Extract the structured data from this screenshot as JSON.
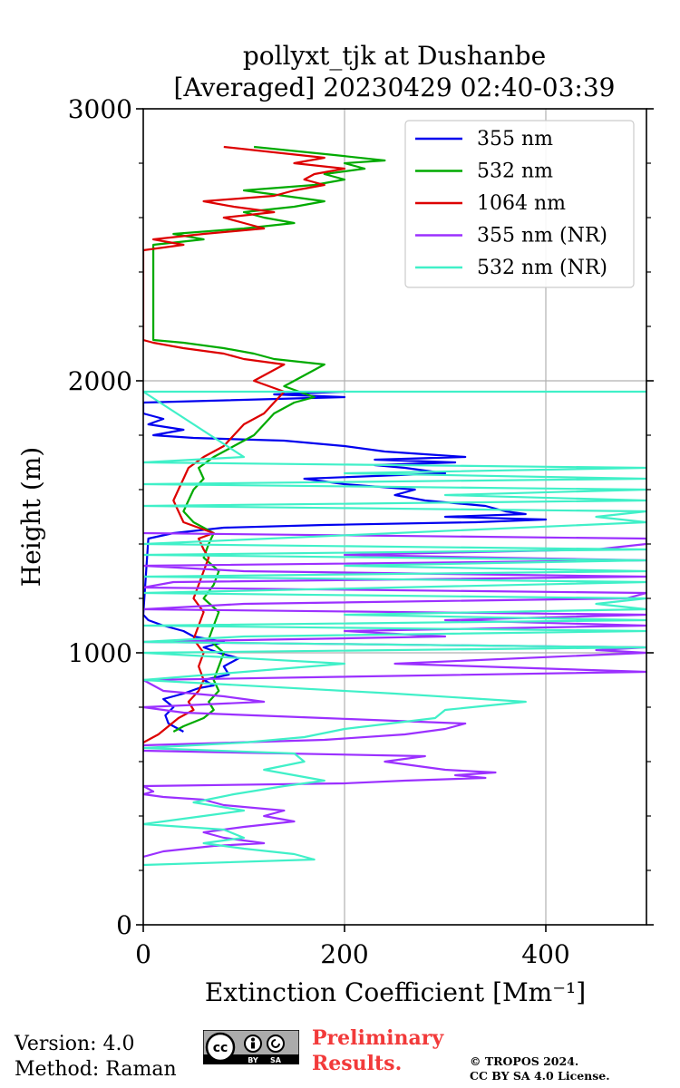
{
  "chart_data": {
    "type": "line",
    "title": "pollyxt_tjk at Dushanbe",
    "subtitle": "[Averaged] 20230429 02:40-03:39",
    "xlabel": "Extinction Coefficient [Mm⁻¹]",
    "ylabel": "Height (m)",
    "xlim": [
      0,
      500
    ],
    "ylim": [
      0,
      3000
    ],
    "x_ticks": [
      0,
      200,
      400
    ],
    "y_ticks": [
      0,
      1000,
      2000,
      3000
    ],
    "grid": true,
    "legend_position": "top-right",
    "series": [
      {
        "name": "355 nm",
        "color": "#0000ee",
        "points": [
          [
            40,
            710
          ],
          [
            25,
            740
          ],
          [
            22,
            770
          ],
          [
            30,
            800
          ],
          [
            20,
            830
          ],
          [
            40,
            850
          ],
          [
            55,
            870
          ],
          [
            70,
            880
          ],
          [
            60,
            900
          ],
          [
            85,
            920
          ],
          [
            80,
            950
          ],
          [
            95,
            980
          ],
          [
            75,
            1000
          ],
          [
            60,
            1020
          ],
          [
            80,
            1040
          ],
          [
            50,
            1060
          ],
          [
            40,
            1080
          ],
          [
            20,
            1100
          ],
          [
            5,
            1120
          ],
          [
            0,
            1140
          ],
          [
            5,
            1420
          ],
          [
            30,
            1440
          ],
          [
            80,
            1460
          ],
          [
            180,
            1470
          ],
          [
            330,
            1480
          ],
          [
            400,
            1490
          ],
          [
            300,
            1500
          ],
          [
            380,
            1510
          ],
          [
            360,
            1520
          ],
          [
            340,
            1540
          ],
          [
            280,
            1560
          ],
          [
            250,
            1580
          ],
          [
            270,
            1600
          ],
          [
            200,
            1620
          ],
          [
            160,
            1640
          ],
          [
            300,
            1660
          ],
          [
            260,
            1680
          ],
          [
            230,
            1690
          ],
          [
            310,
            1700
          ],
          [
            230,
            1710
          ],
          [
            320,
            1720
          ],
          [
            240,
            1740
          ],
          [
            200,
            1760
          ],
          [
            140,
            1780
          ],
          [
            50,
            1790
          ],
          [
            10,
            1800
          ],
          [
            40,
            1820
          ],
          [
            5,
            1840
          ],
          [
            20,
            1860
          ],
          [
            0,
            1880
          ],
          [
            0,
            1920
          ],
          [
            200,
            1940
          ],
          [
            130,
            1950
          ],
          [
            200,
            1960
          ]
        ]
      },
      {
        "name": "532 nm",
        "color": "#00aa00",
        "points": [
          [
            30,
            710
          ],
          [
            40,
            730
          ],
          [
            60,
            760
          ],
          [
            70,
            790
          ],
          [
            65,
            820
          ],
          [
            75,
            860
          ],
          [
            70,
            900
          ],
          [
            75,
            950
          ],
          [
            80,
            1000
          ],
          [
            65,
            1050
          ],
          [
            70,
            1100
          ],
          [
            75,
            1150
          ],
          [
            60,
            1200
          ],
          [
            70,
            1250
          ],
          [
            75,
            1300
          ],
          [
            60,
            1350
          ],
          [
            65,
            1400
          ],
          [
            70,
            1440
          ],
          [
            50,
            1480
          ],
          [
            40,
            1520
          ],
          [
            45,
            1560
          ],
          [
            50,
            1600
          ],
          [
            60,
            1640
          ],
          [
            55,
            1680
          ],
          [
            70,
            1720
          ],
          [
            90,
            1760
          ],
          [
            110,
            1800
          ],
          [
            120,
            1840
          ],
          [
            130,
            1880
          ],
          [
            150,
            1920
          ],
          [
            170,
            1940
          ],
          [
            140,
            1980
          ],
          [
            150,
            2000
          ],
          [
            160,
            2020
          ],
          [
            180,
            2060
          ],
          [
            130,
            2080
          ],
          [
            110,
            2100
          ],
          [
            80,
            2120
          ],
          [
            40,
            2140
          ],
          [
            10,
            2150
          ],
          [
            10,
            2500
          ],
          [
            60,
            2520
          ],
          [
            30,
            2540
          ],
          [
            100,
            2560
          ],
          [
            150,
            2580
          ],
          [
            120,
            2600
          ],
          [
            100,
            2620
          ],
          [
            150,
            2640
          ],
          [
            180,
            2660
          ],
          [
            140,
            2680
          ],
          [
            100,
            2700
          ],
          [
            170,
            2720
          ],
          [
            200,
            2740
          ],
          [
            180,
            2760
          ],
          [
            220,
            2780
          ],
          [
            200,
            2800
          ],
          [
            240,
            2810
          ],
          [
            190,
            2830
          ],
          [
            110,
            2860
          ]
        ]
      },
      {
        "name": "1064 nm",
        "color": "#dd0000",
        "points": [
          [
            0,
            670
          ],
          [
            15,
            700
          ],
          [
            25,
            730
          ],
          [
            35,
            760
          ],
          [
            50,
            790
          ],
          [
            45,
            820
          ],
          [
            55,
            860
          ],
          [
            60,
            900
          ],
          [
            55,
            950
          ],
          [
            60,
            1000
          ],
          [
            50,
            1050
          ],
          [
            55,
            1100
          ],
          [
            60,
            1150
          ],
          [
            50,
            1200
          ],
          [
            55,
            1250
          ],
          [
            60,
            1300
          ],
          [
            65,
            1350
          ],
          [
            60,
            1380
          ],
          [
            55,
            1420
          ],
          [
            70,
            1440
          ],
          [
            40,
            1480
          ],
          [
            35,
            1520
          ],
          [
            30,
            1560
          ],
          [
            35,
            1600
          ],
          [
            40,
            1640
          ],
          [
            45,
            1680
          ],
          [
            60,
            1720
          ],
          [
            80,
            1760
          ],
          [
            90,
            1800
          ],
          [
            100,
            1840
          ],
          [
            120,
            1880
          ],
          [
            130,
            1920
          ],
          [
            140,
            1960
          ],
          [
            110,
            2000
          ],
          [
            120,
            2020
          ],
          [
            140,
            2060
          ],
          [
            100,
            2080
          ],
          [
            80,
            2100
          ],
          [
            40,
            2120
          ],
          [
            10,
            2140
          ],
          [
            0,
            2150
          ],
          [
            0,
            2480
          ],
          [
            40,
            2500
          ],
          [
            10,
            2520
          ],
          [
            60,
            2540
          ],
          [
            120,
            2560
          ],
          [
            100,
            2580
          ],
          [
            80,
            2600
          ],
          [
            130,
            2620
          ],
          [
            90,
            2640
          ],
          [
            60,
            2660
          ],
          [
            130,
            2680
          ],
          [
            150,
            2700
          ],
          [
            180,
            2720
          ],
          [
            160,
            2740
          ],
          [
            170,
            2760
          ],
          [
            200,
            2780
          ],
          [
            150,
            2800
          ],
          [
            180,
            2820
          ],
          [
            130,
            2840
          ],
          [
            80,
            2860
          ]
        ]
      },
      {
        "name": "355 nm (NR)",
        "color": "#9b30ff",
        "points": [
          [
            0,
            250
          ],
          [
            20,
            270
          ],
          [
            70,
            290
          ],
          [
            120,
            300
          ],
          [
            80,
            320
          ],
          [
            60,
            340
          ],
          [
            100,
            360
          ],
          [
            150,
            380
          ],
          [
            120,
            400
          ],
          [
            140,
            420
          ],
          [
            80,
            440
          ],
          [
            60,
            460
          ],
          [
            20,
            470
          ],
          [
            0,
            480
          ],
          [
            10,
            490
          ],
          [
            0,
            510
          ],
          [
            200,
            520
          ],
          [
            260,
            530
          ],
          [
            340,
            540
          ],
          [
            310,
            550
          ],
          [
            350,
            560
          ],
          [
            300,
            570
          ],
          [
            280,
            580
          ],
          [
            240,
            600
          ],
          [
            280,
            620
          ],
          [
            0,
            640
          ],
          [
            0,
            660
          ],
          [
            180,
            680
          ],
          [
            260,
            700
          ],
          [
            300,
            720
          ],
          [
            320,
            740
          ],
          [
            180,
            760
          ],
          [
            40,
            780
          ],
          [
            0,
            800
          ],
          [
            120,
            820
          ],
          [
            80,
            840
          ],
          [
            20,
            860
          ],
          [
            0,
            900
          ],
          [
            500,
            930
          ],
          [
            250,
            960
          ],
          [
            500,
            1000
          ],
          [
            450,
            1010
          ],
          [
            500,
            1020
          ],
          [
            0,
            1040
          ],
          [
            300,
            1060
          ],
          [
            200,
            1080
          ],
          [
            500,
            1100
          ],
          [
            300,
            1120
          ],
          [
            500,
            1140
          ],
          [
            0,
            1160
          ],
          [
            100,
            1180
          ],
          [
            480,
            1200
          ],
          [
            500,
            1220
          ],
          [
            0,
            1240
          ],
          [
            30,
            1260
          ],
          [
            500,
            1280
          ],
          [
            100,
            1300
          ],
          [
            0,
            1320
          ],
          [
            500,
            1340
          ],
          [
            200,
            1360
          ],
          [
            450,
            1380
          ],
          [
            500,
            1400
          ],
          [
            500,
            1420
          ],
          [
            0,
            1440
          ]
        ]
      },
      {
        "name": "532 nm (NR)",
        "color": "#40f0c8",
        "points": [
          [
            0,
            220
          ],
          [
            170,
            240
          ],
          [
            150,
            260
          ],
          [
            100,
            280
          ],
          [
            60,
            300
          ],
          [
            100,
            320
          ],
          [
            80,
            350
          ],
          [
            0,
            370
          ],
          [
            20,
            380
          ],
          [
            60,
            400
          ],
          [
            100,
            420
          ],
          [
            50,
            450
          ],
          [
            90,
            480
          ],
          [
            140,
            510
          ],
          [
            180,
            530
          ],
          [
            150,
            550
          ],
          [
            120,
            570
          ],
          [
            160,
            600
          ],
          [
            150,
            630
          ],
          [
            0,
            650
          ],
          [
            100,
            670
          ],
          [
            160,
            690
          ],
          [
            200,
            720
          ],
          [
            290,
            760
          ],
          [
            300,
            790
          ],
          [
            380,
            820
          ],
          [
            250,
            850
          ],
          [
            0,
            900
          ],
          [
            200,
            960
          ],
          [
            0,
            1000
          ],
          [
            500,
            1020
          ],
          [
            0,
            1040
          ],
          [
            100,
            1060
          ],
          [
            500,
            1080
          ],
          [
            0,
            1100
          ],
          [
            500,
            1120
          ],
          [
            200,
            1140
          ],
          [
            500,
            1160
          ],
          [
            450,
            1180
          ],
          [
            500,
            1200
          ],
          [
            0,
            1220
          ],
          [
            250,
            1240
          ],
          [
            500,
            1260
          ],
          [
            0,
            1280
          ],
          [
            500,
            1300
          ],
          [
            200,
            1320
          ],
          [
            500,
            1340
          ],
          [
            0,
            1360
          ],
          [
            500,
            1380
          ],
          [
            0,
            1400
          ],
          [
            500,
            1480
          ],
          [
            450,
            1500
          ],
          [
            500,
            1520
          ],
          [
            0,
            1540
          ],
          [
            500,
            1560
          ],
          [
            300,
            1580
          ],
          [
            500,
            1600
          ],
          [
            0,
            1620
          ],
          [
            500,
            1640
          ],
          [
            200,
            1660
          ],
          [
            500,
            1680
          ],
          [
            0,
            1700
          ],
          [
            100,
            1720
          ],
          [
            0,
            1960
          ],
          [
            500,
            1960
          ]
        ]
      }
    ]
  },
  "footer": {
    "version": "Version: 4.0",
    "method": "Method: Raman",
    "cc_label": "cc",
    "cc_by": "BY",
    "cc_sa": "SA",
    "preliminary_line1": "Preliminary",
    "preliminary_line2": "Results.",
    "copyright_line1": "© TROPOS 2024.",
    "copyright_line2": "CC BY SA 4.0 License."
  }
}
